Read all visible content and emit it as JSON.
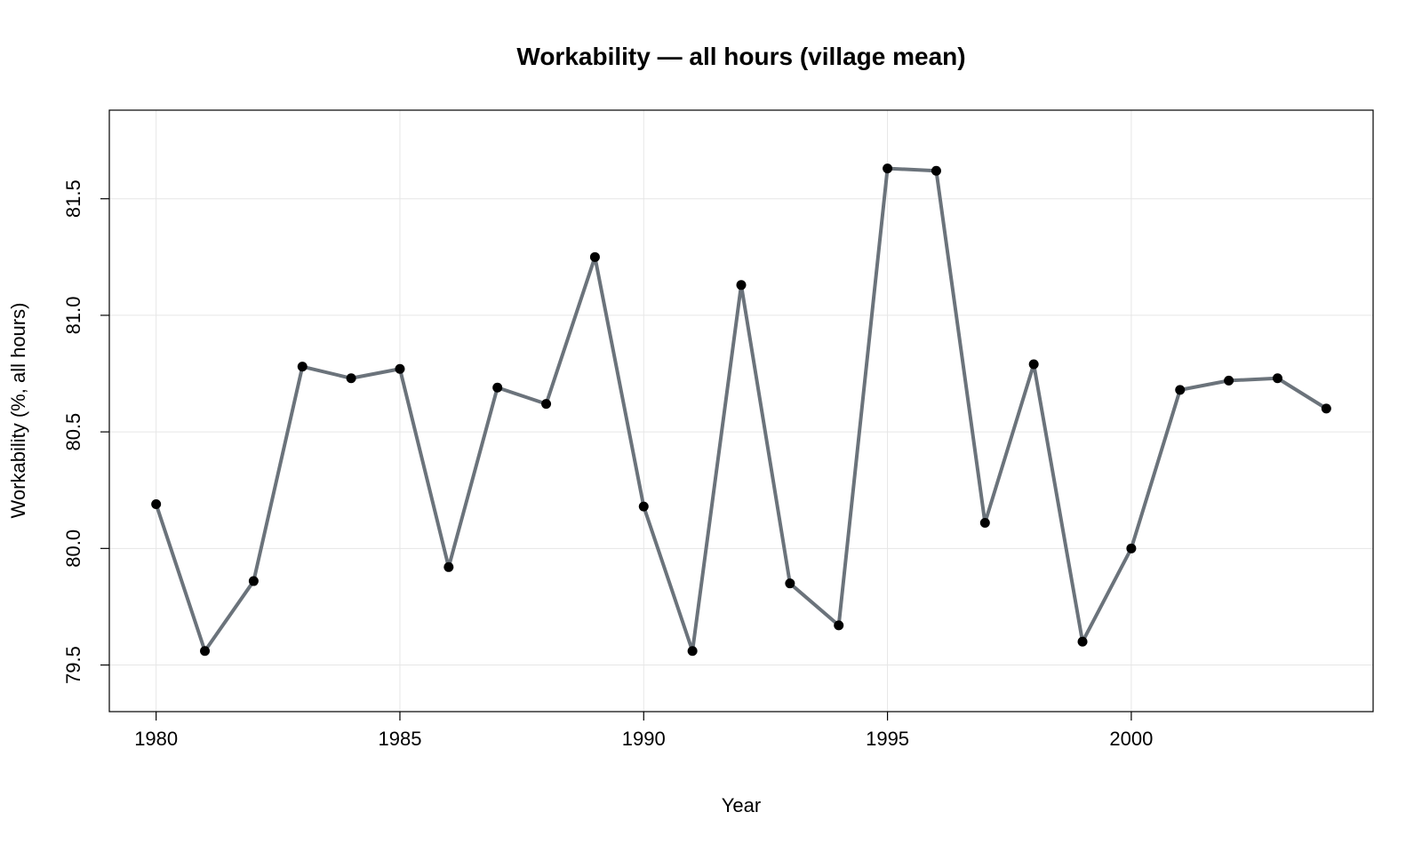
{
  "chart_data": {
    "type": "line",
    "title": "Workability — all hours (village mean)",
    "xlabel": "Year",
    "ylabel": "Workability (%, all hours)",
    "xlim": [
      1979.04,
      2004.96
    ],
    "ylim": [
      79.3,
      81.88
    ],
    "xticks": [
      1980,
      1985,
      1990,
      1995,
      2000
    ],
    "xtick_labels": [
      "1980",
      "1985",
      "1990",
      "1995",
      "2000"
    ],
    "yticks": [
      79.5,
      80.0,
      80.5,
      81.0,
      81.5
    ],
    "ytick_labels": [
      "79.5",
      "80.0",
      "80.5",
      "81.0",
      "81.5"
    ],
    "grid": true,
    "line_color": "#6b737b",
    "point_color": "#000000",
    "x": [
      1980,
      1981,
      1982,
      1983,
      1984,
      1985,
      1986,
      1987,
      1988,
      1989,
      1990,
      1991,
      1992,
      1993,
      1994,
      1995,
      1996,
      1997,
      1998,
      1999,
      2000,
      2001,
      2002,
      2003,
      2004
    ],
    "y": [
      80.19,
      79.56,
      79.86,
      80.78,
      80.73,
      80.77,
      79.92,
      80.69,
      80.62,
      81.25,
      80.18,
      79.56,
      81.13,
      79.85,
      79.67,
      81.63,
      81.62,
      80.11,
      80.79,
      79.6,
      80.0,
      80.68,
      80.72,
      80.73,
      80.6
    ]
  }
}
